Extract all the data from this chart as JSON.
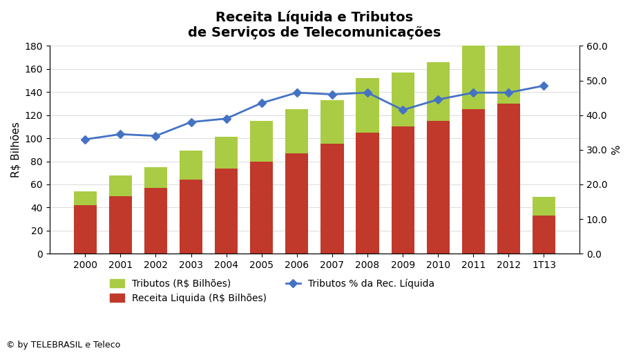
{
  "title": "Receita Líquida e Tributos\nde Serviços de Telecomunicações",
  "categories": [
    "2000",
    "2001",
    "2002",
    "2003",
    "2004",
    "2005",
    "2006",
    "2007",
    "2008",
    "2009",
    "2010",
    "2011",
    "2012",
    "1T13"
  ],
  "receita_liquida": [
    42,
    50,
    57,
    64,
    74,
    80,
    87,
    95,
    105,
    110,
    115,
    125,
    130,
    33
  ],
  "tributos": [
    12,
    18,
    18,
    25,
    27,
    35,
    38,
    38,
    47,
    47,
    51,
    55,
    50,
    16
  ],
  "tributos_pct": [
    33.0,
    34.5,
    34.0,
    38.0,
    39.0,
    43.5,
    46.5,
    46.0,
    46.5,
    41.5,
    44.5,
    46.5,
    46.5,
    48.5
  ],
  "bar_color_receita": "#C0392B",
  "bar_color_tributos": "#AACC44",
  "line_color": "#4472C4",
  "xlabel": "",
  "ylabel_left": "R$ Bilhões",
  "ylabel_right": "%",
  "ylim_left": [
    0,
    180
  ],
  "ylim_right": [
    0.0,
    60.0
  ],
  "yticks_left": [
    0,
    20,
    40,
    60,
    80,
    100,
    120,
    140,
    160,
    180
  ],
  "yticks_right": [
    0.0,
    10.0,
    20.0,
    30.0,
    40.0,
    50.0,
    60.0
  ],
  "legend_tributos": "Tributos (R$ Bilhões)",
  "legend_receita": "Receita Liquida (R$ Bilhões)",
  "legend_pct": "Tributos % da Rec. Líquida",
  "footer": "© by TELEBRASIL e Teleco",
  "bg_color": "#FFFFFF",
  "title_fontsize": 14,
  "axis_fontsize": 11,
  "tick_fontsize": 10,
  "legend_fontsize": 10
}
